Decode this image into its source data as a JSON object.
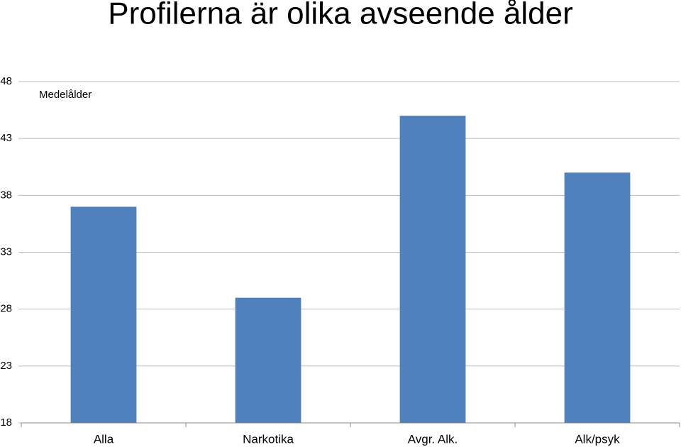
{
  "chart_data": {
    "type": "bar",
    "title": "Profilerna är olika avseende ålder",
    "annotation": "Medelålder",
    "categories": [
      "Alla",
      "Narkotika",
      "Avgr. Alk.",
      "Alk/psyk"
    ],
    "values": [
      37,
      29,
      45,
      40
    ],
    "color": "#4f81bd",
    "ylim": [
      18,
      48
    ],
    "yticks": [
      18,
      23,
      28,
      33,
      38,
      43,
      48
    ],
    "grid": true
  }
}
